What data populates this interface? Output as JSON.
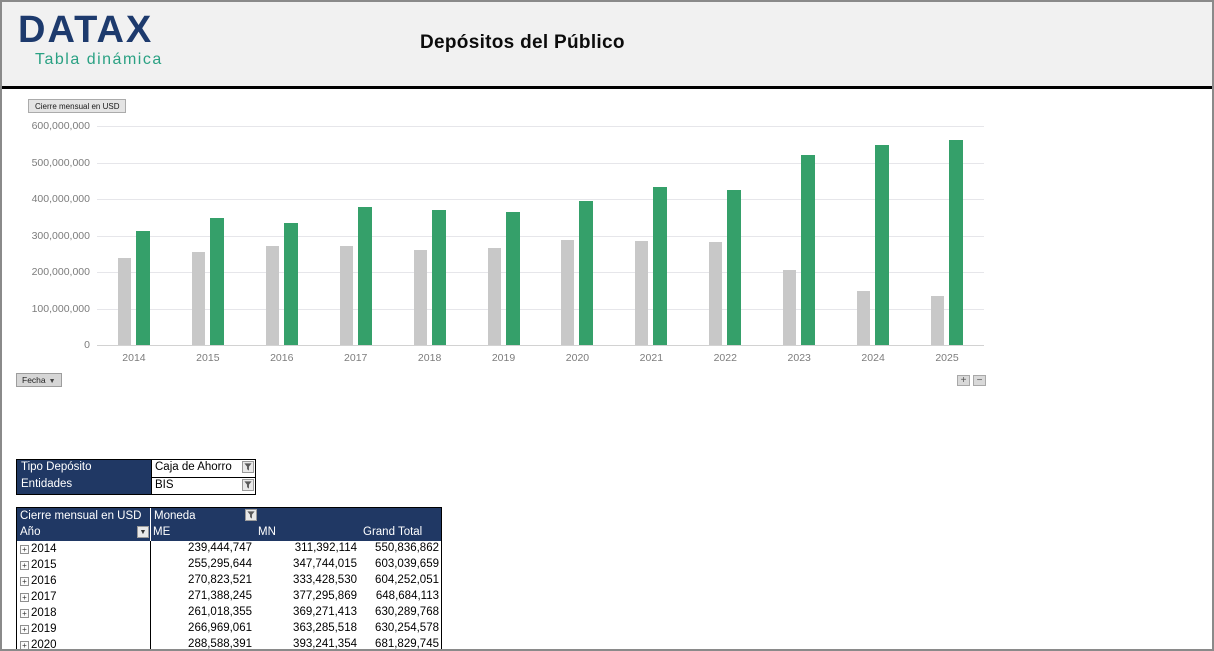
{
  "header": {
    "logo_title": "DATAX",
    "logo_subtitle": "Tabla dinámica",
    "page_title": "Depósitos del Público"
  },
  "chart": {
    "field_button_label": "Cierre mensual en USD",
    "axis_button_label": "Fecha",
    "expand_button_label": "+",
    "collapse_button_label": "−",
    "colors": {
      "me_bar": "#C8C8C8",
      "mn_bar": "#35A06A",
      "header_navy": "#203864"
    }
  },
  "chart_data": {
    "type": "bar",
    "title": "Cierre mensual en USD",
    "categories": [
      "2014",
      "2015",
      "2016",
      "2017",
      "2018",
      "2019",
      "2020",
      "2021",
      "2022",
      "2023",
      "2024",
      "2025"
    ],
    "series": [
      {
        "name": "ME",
        "color": "#C8C8C8",
        "values": [
          239444747,
          255295644,
          270823521,
          271388245,
          261018355,
          266969061,
          288588391,
          284000000,
          281000000,
          206000000,
          148000000,
          134000000
        ]
      },
      {
        "name": "MN",
        "color": "#35A06A",
        "values": [
          311392114,
          347744015,
          333428530,
          377295869,
          369271413,
          363285518,
          393241354,
          432000000,
          424000000,
          521000000,
          547000000,
          561000000
        ]
      }
    ],
    "xlabel": "Fecha",
    "ylabel": "",
    "ylim": [
      0,
      600000000
    ],
    "ytick_labels": [
      "0",
      "100,000,000",
      "200,000,000",
      "300,000,000",
      "400,000,000",
      "500,000,000",
      "600,000,000"
    ],
    "grid": "horizontal",
    "legend": "none"
  },
  "filters": {
    "rows": [
      {
        "label": "Tipo Depósito",
        "value": "Caja de Ahorro"
      },
      {
        "label": "Entidades",
        "value": "BIS"
      }
    ]
  },
  "pivot": {
    "title": "Cierre mensual en USD",
    "column_field": "Moneda",
    "row_field": "Año",
    "columns": [
      "ME",
      "MN",
      "Grand Total"
    ],
    "expand_glyph": "+",
    "rows": [
      {
        "year": "2014",
        "me": "239,444,747",
        "mn": "311,392,114",
        "total": "550,836,862"
      },
      {
        "year": "2015",
        "me": "255,295,644",
        "mn": "347,744,015",
        "total": "603,039,659"
      },
      {
        "year": "2016",
        "me": "270,823,521",
        "mn": "333,428,530",
        "total": "604,252,051"
      },
      {
        "year": "2017",
        "me": "271,388,245",
        "mn": "377,295,869",
        "total": "648,684,113"
      },
      {
        "year": "2018",
        "me": "261,018,355",
        "mn": "369,271,413",
        "total": "630,289,768"
      },
      {
        "year": "2019",
        "me": "266,969,061",
        "mn": "363,285,518",
        "total": "630,254,578"
      },
      {
        "year": "2020",
        "me": "288,588,391",
        "mn": "393,241,354",
        "total": "681,829,745"
      }
    ]
  }
}
